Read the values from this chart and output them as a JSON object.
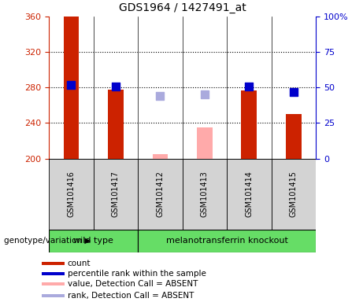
{
  "title": "GDS1964 / 1427491_at",
  "samples": [
    "GSM101416",
    "GSM101417",
    "GSM101412",
    "GSM101413",
    "GSM101414",
    "GSM101415"
  ],
  "ylim_left": [
    200,
    360
  ],
  "ylim_right": [
    0,
    100
  ],
  "yticks_left": [
    200,
    240,
    280,
    320,
    360
  ],
  "yticks_right": [
    0,
    25,
    50,
    75,
    100
  ],
  "ytick_labels_right": [
    "0",
    "25",
    "50",
    "75",
    "100%"
  ],
  "left_color": "#cc2200",
  "right_color": "#0000cc",
  "count_bars": {
    "GSM101416": 360,
    "GSM101417": 278,
    "GSM101412": null,
    "GSM101413": null,
    "GSM101414": 277,
    "GSM101415": 250
  },
  "count_absent_bars": {
    "GSM101416": null,
    "GSM101417": null,
    "GSM101412": 205,
    "GSM101413": 235,
    "GSM101414": null,
    "GSM101415": null
  },
  "rank_markers": {
    "GSM101416": 52,
    "GSM101417": 51,
    "GSM101412": null,
    "GSM101413": null,
    "GSM101414": 51,
    "GSM101415": 47
  },
  "rank_absent_markers": {
    "GSM101416": null,
    "GSM101417": null,
    "GSM101412": 44,
    "GSM101413": 45,
    "GSM101414": null,
    "GSM101415": null
  },
  "bar_width": 0.35,
  "marker_size": 55,
  "panel_color": "#d3d3d3",
  "group_box_color": "#66dd66",
  "chart_bg": "#ffffff",
  "wild_type_samples": [
    0,
    1
  ],
  "knockout_samples": [
    2,
    3,
    4,
    5
  ],
  "wild_type_label": "wild type",
  "knockout_label": "melanotransferrin knockout",
  "genotype_label": "genotype/variation",
  "legend_items": [
    {
      "color": "#cc2200",
      "label": "count"
    },
    {
      "color": "#0000cc",
      "label": "percentile rank within the sample"
    },
    {
      "color": "#ffaaaa",
      "label": "value, Detection Call = ABSENT"
    },
    {
      "color": "#aaaadd",
      "label": "rank, Detection Call = ABSENT"
    }
  ]
}
